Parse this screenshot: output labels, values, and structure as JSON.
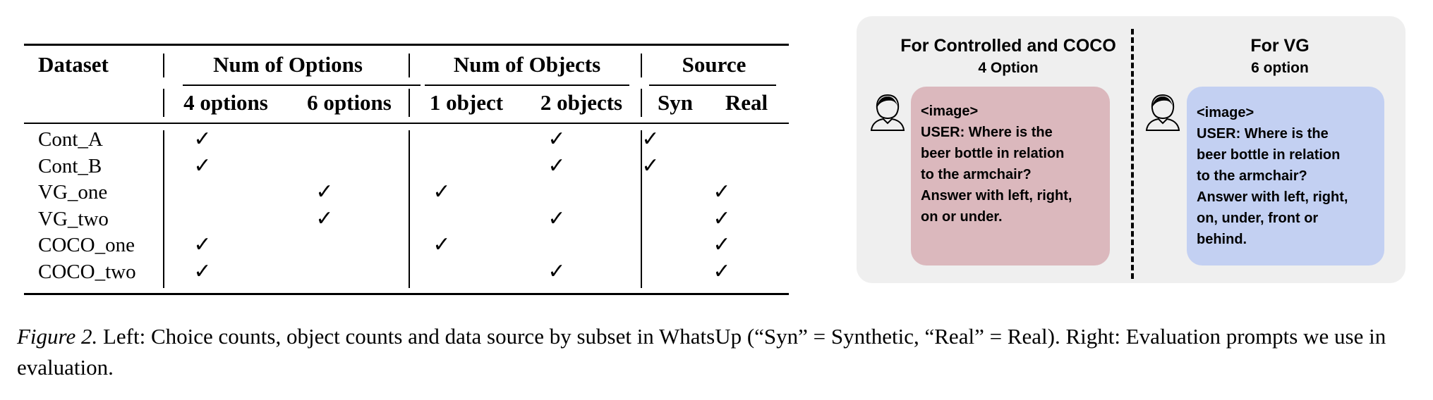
{
  "table": {
    "header": {
      "dataset": "Dataset",
      "groups": [
        "Num of Options",
        "Num of Objects",
        "Source"
      ],
      "subcols": [
        "4 options",
        "6 options",
        "1 object",
        "2 objects",
        "Syn",
        "Real"
      ]
    },
    "check_mark": "✓",
    "rows": [
      {
        "name": "Cont_A",
        "checks": [
          true,
          false,
          false,
          true,
          true,
          false
        ]
      },
      {
        "name": "Cont_B",
        "checks": [
          true,
          false,
          false,
          true,
          true,
          false
        ]
      },
      {
        "name": "VG_one",
        "checks": [
          false,
          true,
          true,
          false,
          false,
          true
        ]
      },
      {
        "name": "VG_two",
        "checks": [
          false,
          true,
          false,
          true,
          false,
          true
        ]
      },
      {
        "name": "COCO_one",
        "checks": [
          true,
          false,
          true,
          false,
          false,
          true
        ]
      },
      {
        "name": "COCO_two",
        "checks": [
          true,
          false,
          false,
          true,
          false,
          true
        ]
      }
    ]
  },
  "panel": {
    "left": {
      "title": "For Controlled and COCO",
      "subtitle": "4 Option",
      "lines": [
        "<image>",
        "USER: Where is the",
        "beer bottle in relation",
        "to the armchair?",
        "Answer with left, right,",
        "on or under."
      ],
      "bubble_color": "#dbb8bd"
    },
    "right": {
      "title": "For VG",
      "subtitle": "6 option",
      "lines": [
        "<image>",
        "USER: Where is the",
        "beer bottle in relation",
        "to the armchair?",
        "Answer with left, right,",
        "on, under, front or",
        "behind."
      ],
      "bubble_color": "#c3d0f2"
    },
    "background": "#efefef",
    "avatar_icon": "person-icon"
  },
  "caption": {
    "label": "Figure 2.",
    "text": " Left: Choice counts, object counts and data source by subset in WhatsUp (“Syn” = Synthetic, “Real” = Real). Right: Evaluation prompts we use in evaluation."
  }
}
